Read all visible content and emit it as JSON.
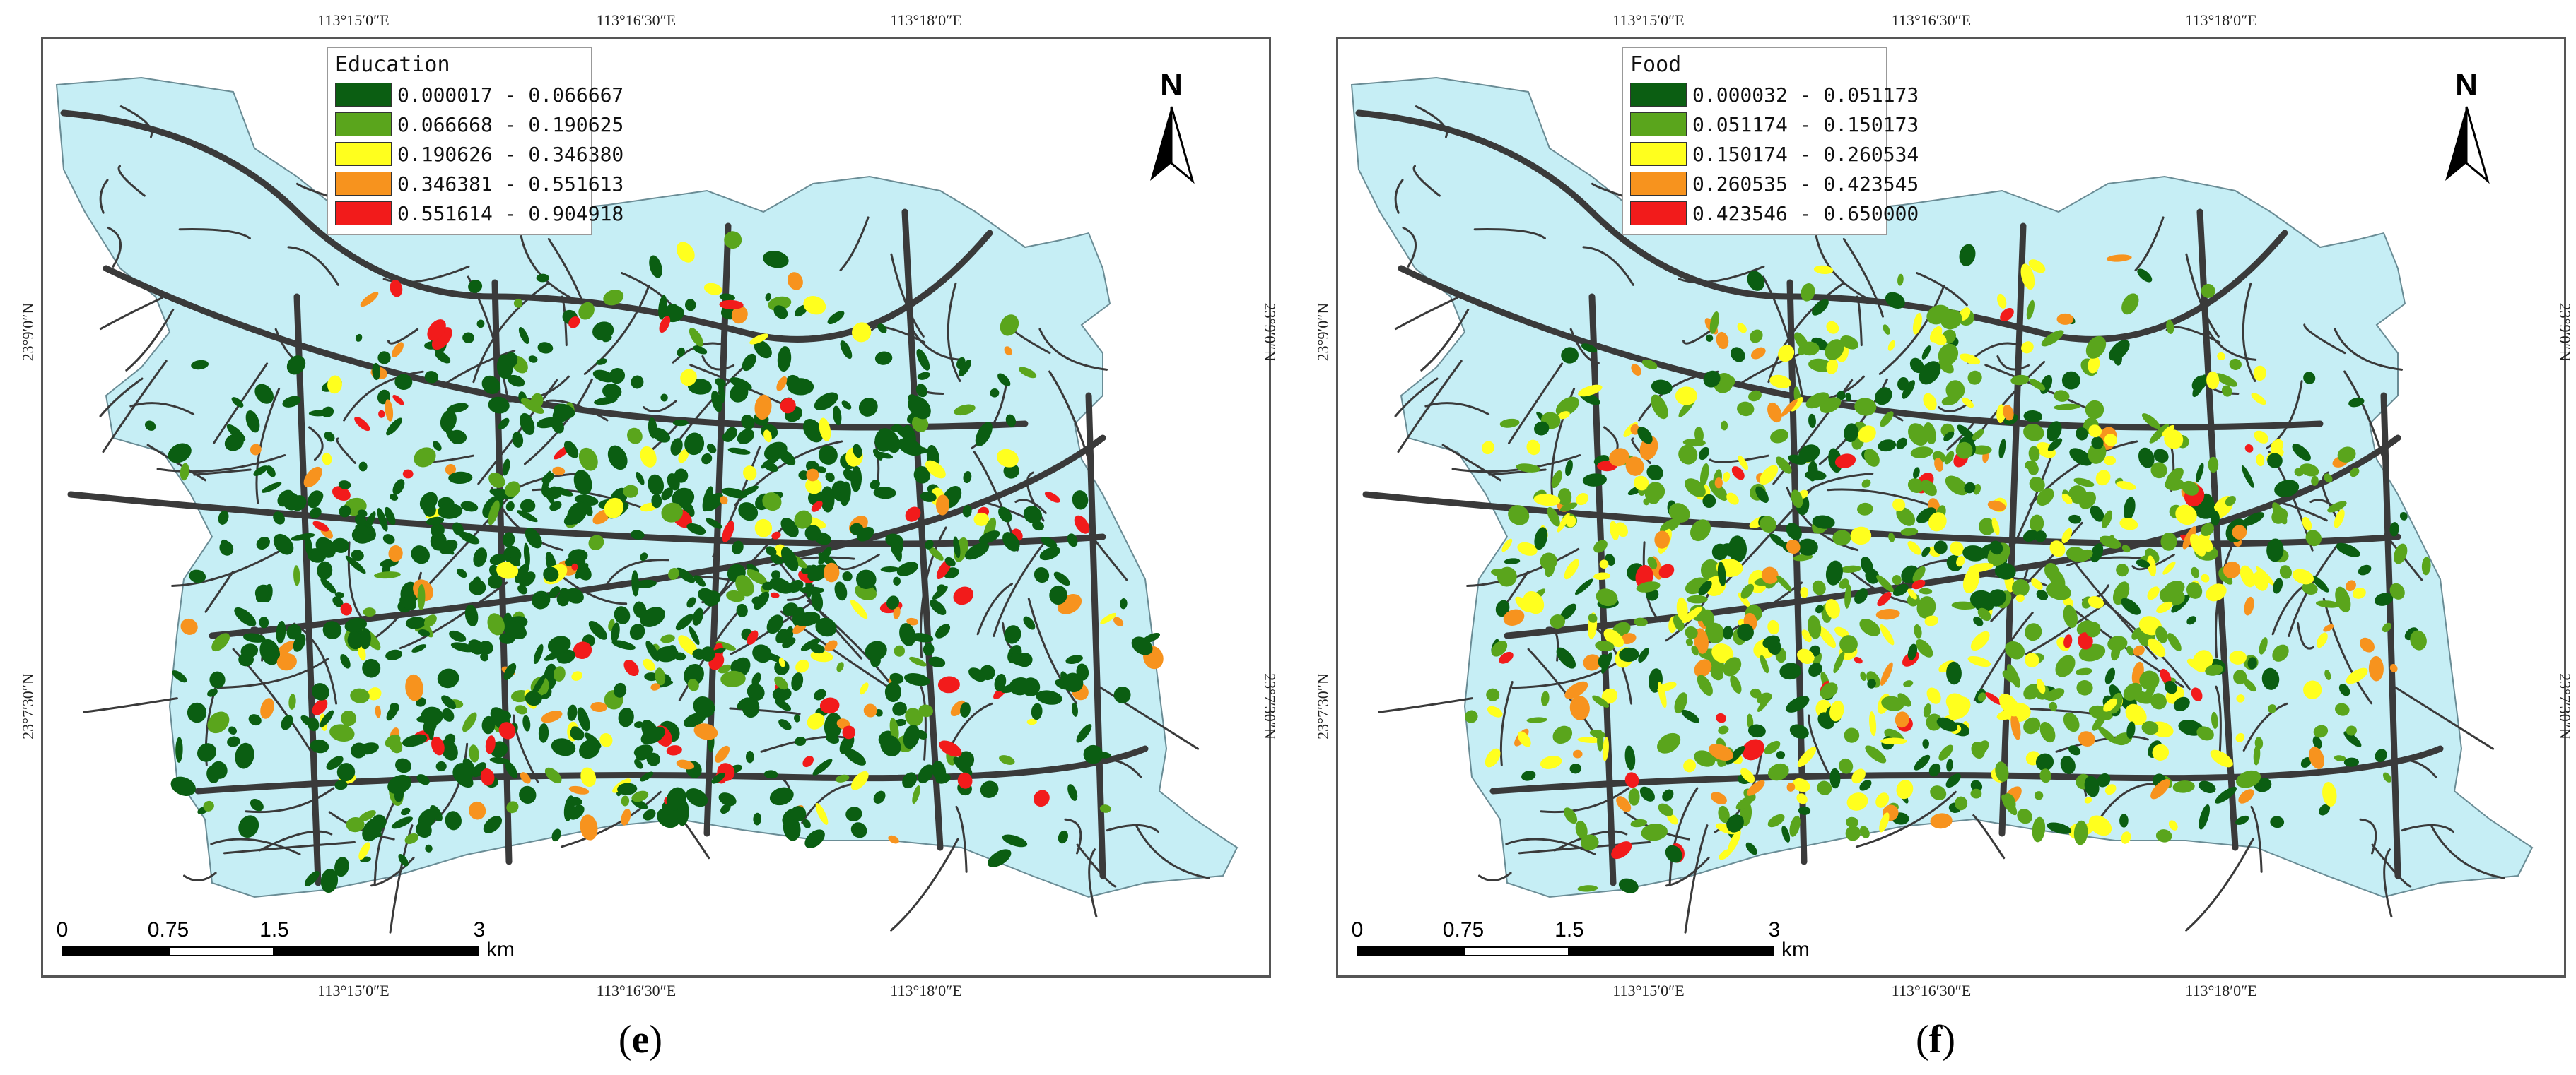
{
  "panels": [
    {
      "id": "e",
      "caption": "e",
      "legend": {
        "title": "Education",
        "classes": [
          {
            "label": "0.000017 - 0.066667",
            "color": "#0b5e12"
          },
          {
            "label": "0.066668 - 0.190625",
            "color": "#5aa51c"
          },
          {
            "label": "0.190626 - 0.346380",
            "color": "#ffff1e"
          },
          {
            "label": "0.346381 - 0.551613",
            "color": "#f7931e"
          },
          {
            "label": "0.551614 - 0.904918",
            "color": "#f21b1b"
          }
        ]
      },
      "top_coords": [
        "113°15′0″E",
        "113°16′30″E",
        "113°18′0″E"
      ],
      "bottom_coords": [
        "113°15′0″E",
        "113°16′30″E",
        "113°18′0″E"
      ],
      "left_coords": [
        "23°9′0″N",
        "23°7′30″N"
      ],
      "right_coords": [
        "23°9′0″N",
        "23°7′30″N"
      ],
      "scale_ticks": [
        "0",
        "0.75",
        "1.5",
        "3"
      ],
      "scale_unit": "km",
      "north_label": "N",
      "class_mix": [
        0.72,
        0.12,
        0.05,
        0.06,
        0.05
      ]
    },
    {
      "id": "f",
      "caption": "f",
      "legend": {
        "title": "Food",
        "classes": [
          {
            "label": "0.000032 - 0.051173",
            "color": "#0b5e12"
          },
          {
            "label": "0.051174 - 0.150173",
            "color": "#5aa51c"
          },
          {
            "label": "0.150174 - 0.260534",
            "color": "#ffff1e"
          },
          {
            "label": "0.260535 - 0.423545",
            "color": "#f7931e"
          },
          {
            "label": "0.423546 - 0.650000",
            "color": "#f21b1b"
          }
        ]
      },
      "top_coords": [
        "113°15′0″E",
        "113°16′30″E",
        "113°18′0″E"
      ],
      "bottom_coords": [
        "113°15′0″E",
        "113°16′30″E",
        "113°18′0″E"
      ],
      "left_coords": [
        "23°9′0″N",
        "23°7′30″N"
      ],
      "right_coords": [
        "23°9′0″N",
        "23°7′30″N"
      ],
      "scale_ticks": [
        "0",
        "0.75",
        "1.5",
        "3"
      ],
      "scale_unit": "km",
      "north_label": "N",
      "class_mix": [
        0.25,
        0.42,
        0.22,
        0.07,
        0.04
      ]
    }
  ],
  "colors": {
    "district_fill": "#c6eef5",
    "road": "#3a3a3a"
  }
}
